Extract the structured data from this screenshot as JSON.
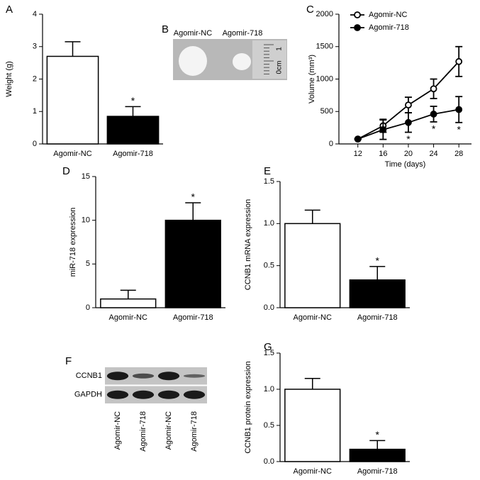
{
  "chart_data": [
    {
      "type": "bar",
      "panel": "A",
      "y_label": "Weight (g)",
      "categories": [
        "Agomir-NC",
        "Agomir-718"
      ],
      "values": [
        2.7,
        0.85
      ],
      "errors": [
        0.45,
        0.3
      ],
      "significance": [
        null,
        "*"
      ],
      "colors": [
        "#ffffff",
        "#000000"
      ],
      "ylim": [
        0,
        4
      ],
      "yticks": [
        0,
        1,
        2,
        3,
        4
      ]
    },
    {
      "type": "image",
      "panel": "B",
      "labels": [
        "Agomir-NC",
        "Agomir-718"
      ],
      "ruler_labels": [
        "0cm",
        "1"
      ]
    },
    {
      "type": "line",
      "panel": "C",
      "x_label": "Time (days)",
      "y_label": "Volume (mm³)",
      "x": [
        12,
        16,
        20,
        24,
        28
      ],
      "series": [
        {
          "name": "Agomir-NC",
          "color": "#000000",
          "fill": "#ffffff",
          "values": [
            75,
            280,
            600,
            850,
            1270
          ],
          "errors": [
            0,
            100,
            120,
            150,
            230
          ]
        },
        {
          "name": "Agomir-718",
          "color": "#000000",
          "fill": "#000000",
          "values": [
            75,
            220,
            330,
            460,
            530
          ],
          "errors": [
            0,
            150,
            150,
            120,
            200
          ]
        }
      ],
      "significance": [
        null,
        null,
        "*",
        "*",
        "*"
      ],
      "xlim": [
        9,
        30
      ],
      "xticks": [
        12,
        16,
        20,
        24,
        28
      ],
      "ylim": [
        0,
        2000
      ],
      "yticks": [
        0,
        500,
        1000,
        1500,
        2000
      ],
      "legend": "top-left"
    },
    {
      "type": "bar",
      "panel": "D",
      "y_label": "miR-718 expression",
      "categories": [
        "Agomir-NC",
        "Agomir-718"
      ],
      "values": [
        1,
        10
      ],
      "errors": [
        1,
        2
      ],
      "significance": [
        null,
        "*"
      ],
      "colors": [
        "#ffffff",
        "#000000"
      ],
      "ylim": [
        0,
        15
      ],
      "yticks": [
        0,
        5,
        10,
        15
      ]
    },
    {
      "type": "bar",
      "panel": "E",
      "y_label": "CCNB1 mRNA expression",
      "categories": [
        "Agomir-NC",
        "Agomir-718"
      ],
      "values": [
        1.0,
        0.33
      ],
      "errors": [
        0.16,
        0.16
      ],
      "significance": [
        null,
        "*"
      ],
      "colors": [
        "#ffffff",
        "#000000"
      ],
      "ylim": [
        0,
        1.5
      ],
      "yticks": [
        {
          "value": 0,
          "label": "0.0"
        },
        0.5,
        {
          "value": 1,
          "label": "1.0"
        },
        1.5
      ]
    },
    {
      "type": "blot",
      "panel": "F",
      "rows": [
        "CCNB1",
        "GAPDH"
      ],
      "lanes": [
        "Agomir-NC",
        "Agomir-718",
        "Agomir-NC",
        "Agomir-718"
      ]
    },
    {
      "type": "bar",
      "panel": "G",
      "y_label": "CCNB1 protein expression",
      "categories": [
        "Agomir-NC",
        "Agomir-718"
      ],
      "values": [
        1.0,
        0.17
      ],
      "errors": [
        0.15,
        0.12
      ],
      "significance": [
        null,
        "*"
      ],
      "colors": [
        "#ffffff",
        "#000000"
      ],
      "ylim": [
        0,
        1.5
      ],
      "yticks": [
        {
          "value": 0,
          "label": "0.0"
        },
        0.5,
        {
          "value": 1,
          "label": "1.0"
        },
        1.5
      ]
    }
  ]
}
